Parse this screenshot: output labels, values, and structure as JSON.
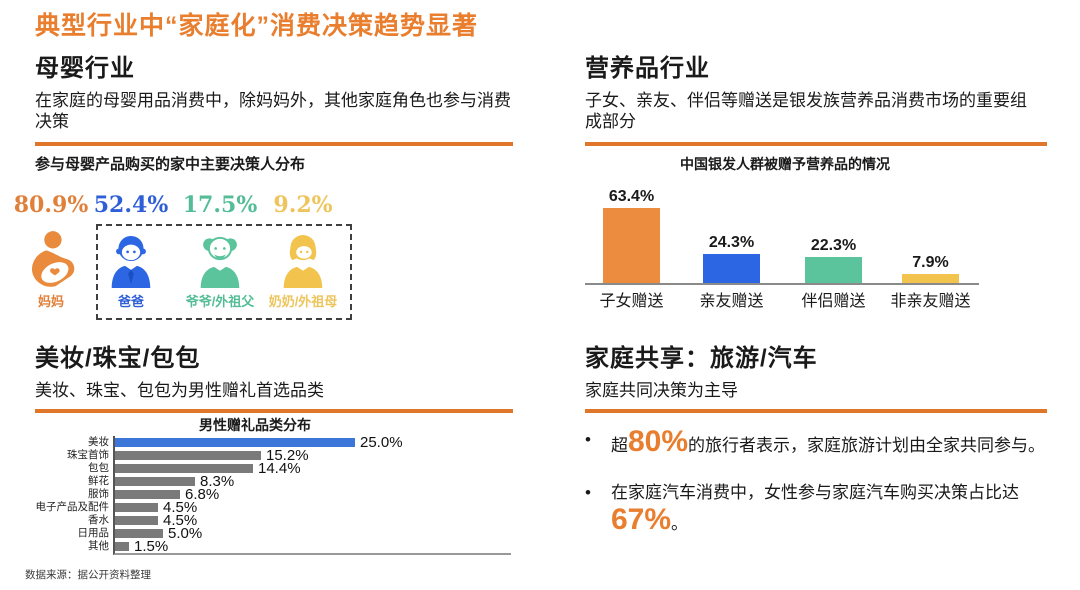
{
  "title": "典型行业中“家庭化”消费决策趋势显著",
  "colors": {
    "accent_orange": "#E87E2E",
    "divider_orange": "#E0762A",
    "blue": "#2F5FD7",
    "teal": "#54BD97",
    "yellow": "#EEC45C",
    "gray_bar": "#7A7A7A",
    "highlight_blue": "#3B76D8"
  },
  "sections": {
    "maternal": {
      "heading": "母婴行业",
      "description": "在家庭的母婴用品消费中，除妈妈外，其他家庭角色也参与消费决策",
      "chart_title": "参与母婴产品购买的家中主要决策人分布",
      "roles": [
        {
          "pct": "80.9%",
          "label": "妈妈",
          "icon": "mother-icon",
          "color": "#E0813B"
        },
        {
          "pct": "52.4%",
          "label": "爸爸",
          "icon": "father-icon",
          "color": "#2F5FD7"
        },
        {
          "pct": "17.5%",
          "label": "爷爷/外祖父",
          "icon": "grandfather-icon",
          "color": "#54BD97"
        },
        {
          "pct": "9.2%",
          "label": "奶奶/外祖母",
          "icon": "grandmother-icon",
          "color": "#EEC45C"
        }
      ]
    },
    "nutrition": {
      "heading": "营养品行业",
      "description": "子女、亲友、伴侣等赠送是银发族营养品消费市场的重要组成部分",
      "chart_title": "中国银发人群被赠予营养品的情况"
    },
    "beauty": {
      "heading": "美妆/珠宝/包包",
      "description": "美妆、珠宝、包包为男性赠礼首选品类",
      "chart_title": "男性赠礼品类分布"
    },
    "family": {
      "heading": "家庭共享：旅游/汽车",
      "description": "家庭共同决策为主导",
      "bullets": [
        {
          "pre": "超",
          "big": "80%",
          "post": "的旅行者表示，家庭旅游计划由全家共同参与。"
        },
        {
          "pre": "在家庭汽车消费中，女性参与家庭汽车购买决策占比达",
          "big": "67%",
          "post": "。"
        }
      ]
    }
  },
  "footer": "数据来源：据公开资料整理",
  "chart_data": [
    {
      "type": "bar",
      "title": "中国银发人群被赠予营养品的情况",
      "categories": [
        "子女赠送",
        "亲友赠送",
        "伴侣赠送",
        "非亲友赠送"
      ],
      "values": [
        63.4,
        24.3,
        22.3,
        7.9
      ],
      "colors": [
        "#EC8C3E",
        "#2D66E3",
        "#5BC49D",
        "#F2C44D"
      ],
      "unit": "%",
      "ylim": [
        0,
        70
      ],
      "grid": false,
      "value_labels": true
    },
    {
      "type": "bar",
      "orientation": "horizontal",
      "title": "男性赠礼品类分布",
      "categories": [
        "美妆",
        "珠宝首饰",
        "包包",
        "鲜花",
        "服饰",
        "电子产品及配件",
        "香水",
        "日用品",
        "其他"
      ],
      "values": [
        25.0,
        15.2,
        14.4,
        8.3,
        6.8,
        4.5,
        4.5,
        5.0,
        1.5
      ],
      "highlight_index": 0,
      "highlight_color": "#3B76D8",
      "bar_color": "#7A7A7A",
      "unit": "%",
      "xlim": [
        0,
        27
      ],
      "grid": false,
      "value_labels": true
    },
    {
      "type": "bar",
      "title": "参与母婴产品购买的家中主要决策人分布",
      "categories": [
        "妈妈",
        "爸爸",
        "爷爷/外祖父",
        "奶奶/外祖母"
      ],
      "values": [
        80.9,
        52.4,
        17.5,
        9.2
      ],
      "colors": [
        "#E0813B",
        "#2F5FD7",
        "#54BD97",
        "#EEC45C"
      ],
      "unit": "%",
      "note": "pictograph with family-role icons"
    }
  ]
}
